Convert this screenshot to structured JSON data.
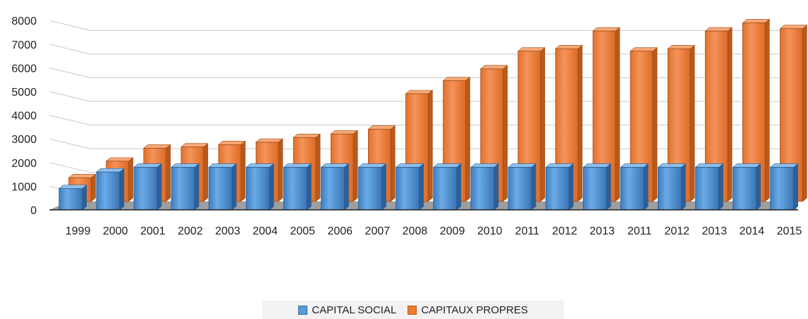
{
  "chart_data": {
    "type": "bar",
    "title": "",
    "xlabel": "",
    "ylabel": "",
    "ylim": [
      0,
      8000
    ],
    "yticks": [
      0,
      1000,
      2000,
      3000,
      4000,
      5000,
      6000,
      7000,
      8000
    ],
    "categories": [
      "1999",
      "2000",
      "2001",
      "2002",
      "2003",
      "2004",
      "2005",
      "2006",
      "2007",
      "2008",
      "2009",
      "2010",
      "2011",
      "2012",
      "2013",
      "2011",
      "2012",
      "2013",
      "2014",
      "2015"
    ],
    "series": [
      {
        "name": "CAPITAL SOCIAL",
        "color": "#5b9bd5",
        "values": [
          900,
          1600,
          1800,
          1800,
          1800,
          1800,
          1800,
          1800,
          1800,
          1800,
          1800,
          1800,
          1800,
          1800,
          1800,
          1800,
          1800,
          1800,
          1800,
          1800
        ]
      },
      {
        "name": "CAPITAUX PROPRES",
        "color": "#ed7d31",
        "values": [
          1000,
          1700,
          2250,
          2300,
          2400,
          2500,
          2700,
          2850,
          3050,
          4550,
          5100,
          5600,
          6350,
          6450,
          7200,
          6350,
          6450,
          7200,
          7550,
          7300
        ]
      }
    ],
    "grid": true,
    "legend_position": "bottom"
  }
}
